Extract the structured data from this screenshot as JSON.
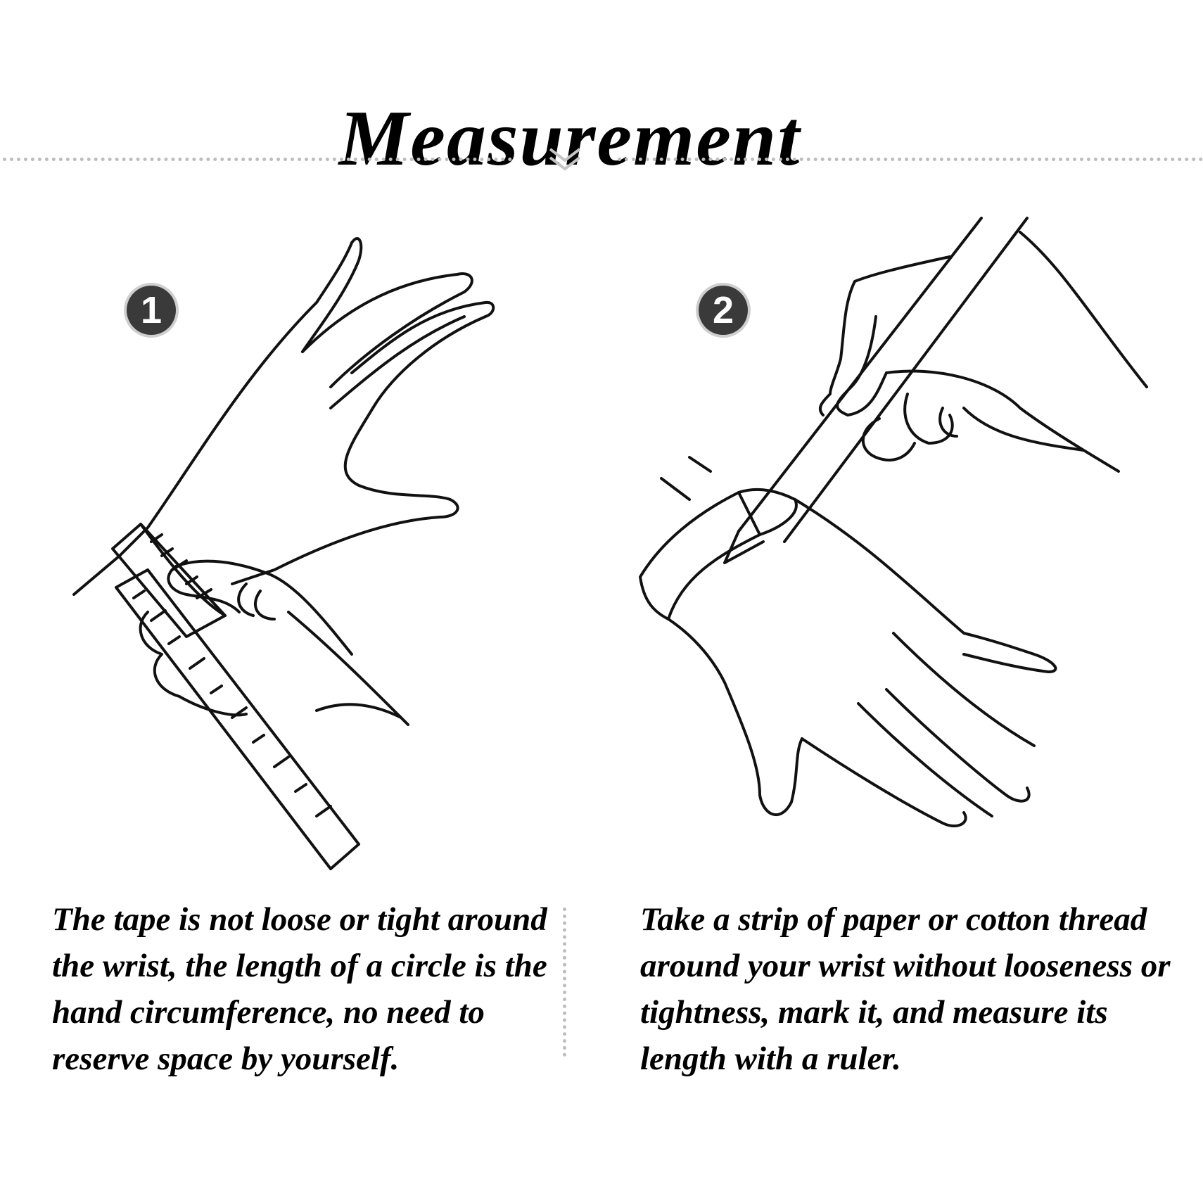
{
  "title": "Measurement",
  "steps": [
    {
      "number": "1",
      "text": "The tape is not loose or tight around the wrist, the length of a circle is the hand circumference, no need to reserve space by yourself."
    },
    {
      "number": "2",
      "text": "Take a strip of paper or cotton thread around your wrist without looseness or tightness, mark it, and measure its length with a ruler."
    }
  ],
  "icons": {
    "divider": "double-chevron-down-icon",
    "illustration_1": "hand-measuring-tape-icon",
    "illustration_2": "hand-marking-paper-strip-icon"
  },
  "colors": {
    "text": "#000000",
    "badge": "#3a3a3a",
    "divider": "#bdbdbd"
  }
}
